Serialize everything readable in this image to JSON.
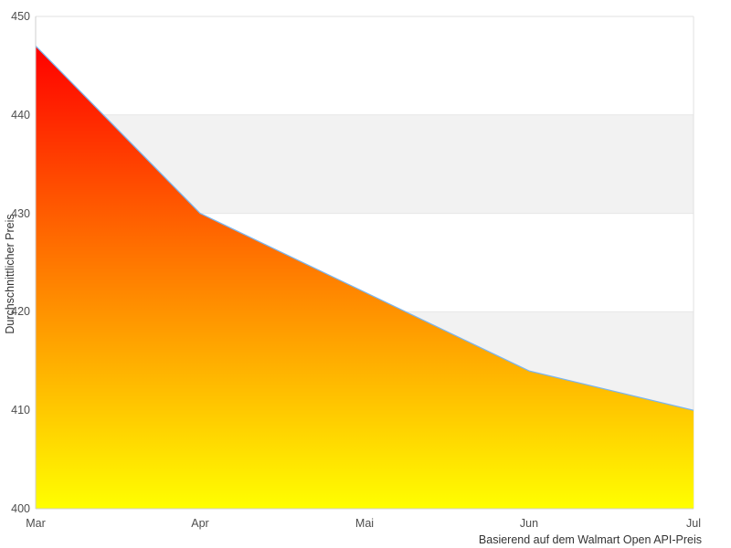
{
  "chart_data": {
    "type": "area",
    "categories": [
      "Mar",
      "Apr",
      "Mai",
      "Jun",
      "Jul"
    ],
    "values": [
      447,
      430,
      422,
      414,
      410
    ],
    "title": "",
    "ylabel": "Durchschnittlicher Preis",
    "caption": "Basierend auf dem Walmart Open API-Preis",
    "ylim": [
      400,
      450
    ],
    "ytick_step": 10,
    "y_tick_labels": [
      "450",
      "440",
      "430",
      "420",
      "410",
      "400"
    ],
    "grid": true,
    "legend_position": "none",
    "colors": {
      "line": "#7cb5ec",
      "fill_top": "#ff0000",
      "fill_bottom": "#ffff00",
      "band": "#f2f2f2",
      "gridline": "#e6e6e6",
      "border": "#e0e0e0",
      "axis_line": "#cfcfcf",
      "tick_text": "#4d4d4d",
      "title_text": "#333333"
    }
  }
}
